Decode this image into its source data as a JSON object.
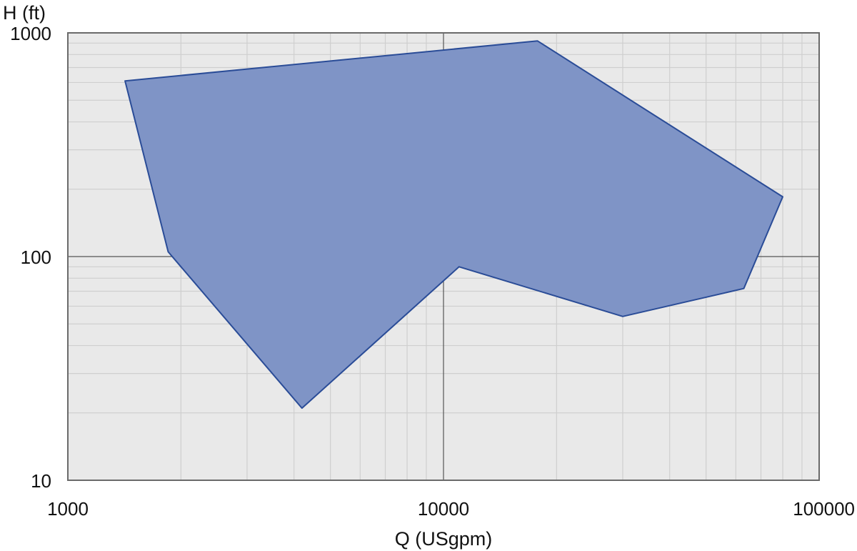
{
  "chart_data": {
    "type": "area",
    "title": "",
    "xlabel": "Q (USgpm)",
    "ylabel": "H (ft)",
    "xscale": "log",
    "yscale": "log",
    "xlim": [
      1000,
      100000
    ],
    "ylim": [
      10,
      1000
    ],
    "x_ticks": [
      {
        "value": 1000,
        "label": "1000"
      },
      {
        "value": 10000,
        "label": "10000"
      },
      {
        "value": 100000,
        "label": "100000"
      }
    ],
    "y_ticks": [
      {
        "value": 10,
        "label": "10"
      },
      {
        "value": 100,
        "label": "100"
      },
      {
        "value": 1000,
        "label": "1000"
      }
    ],
    "grid": true,
    "legend": "none",
    "colors": {
      "background": "#e9e9e9",
      "fill": "#7f94c6",
      "stroke": "#2a4c97",
      "minor_grid": "#cfcfcf",
      "major_grid": "#555555",
      "frame": "#6a6a6a"
    },
    "series": [
      {
        "points": [
          {
            "x": 1420,
            "y": 610
          },
          {
            "x": 17800,
            "y": 920
          },
          {
            "x": 80000,
            "y": 185
          },
          {
            "x": 63000,
            "y": 72
          },
          {
            "x": 30000,
            "y": 54
          },
          {
            "x": 11000,
            "y": 90
          },
          {
            "x": 4200,
            "y": 21
          },
          {
            "x": 1850,
            "y": 105
          }
        ]
      }
    ]
  }
}
